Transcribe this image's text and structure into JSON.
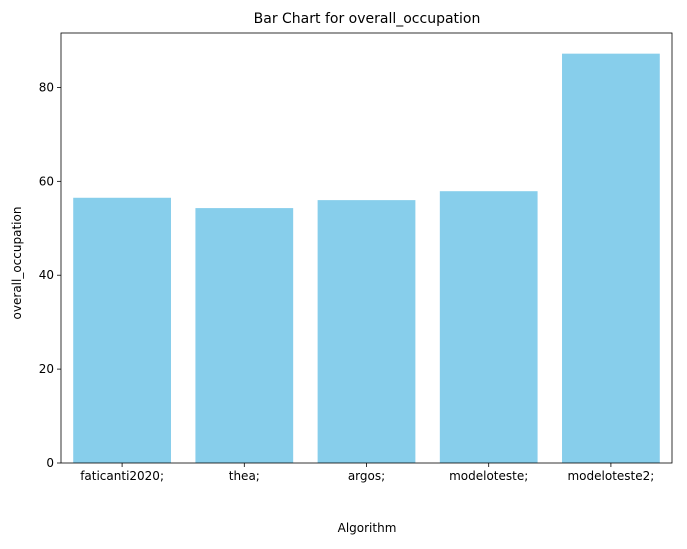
{
  "chart_data": {
    "type": "bar",
    "title": "Bar Chart for overall_occupation",
    "xlabel": "Algorithm",
    "ylabel": "overall_occupation",
    "categories": [
      "faticanti2020;",
      "thea;",
      "argos;",
      "modeloteste;",
      "modeloteste2;"
    ],
    "values": [
      56.5,
      54.3,
      56.0,
      57.9,
      87.2
    ],
    "ylim": [
      0,
      91.6
    ],
    "yticks": [
      0,
      20,
      40,
      60,
      80
    ],
    "bar_color": "#87ceeb",
    "grid": false,
    "legend": false
  }
}
